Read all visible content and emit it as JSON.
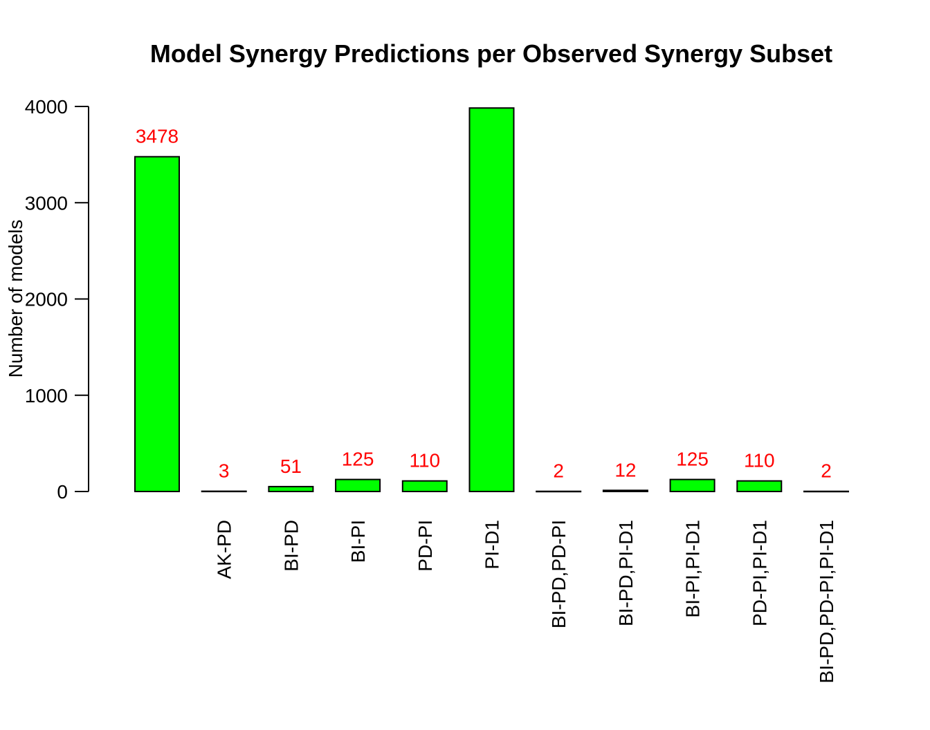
{
  "chart_data": {
    "type": "bar",
    "title": "Model Synergy Predictions per Observed Synergy Subset",
    "xlabel": "",
    "ylabel": "Number of models",
    "ylim": [
      0,
      4000
    ],
    "yticks": [
      "0",
      "1000",
      "2000",
      "3000",
      "4000"
    ],
    "categories": [
      "",
      "AK-PD",
      "BI-PD",
      "BI-PI",
      "PD-PI",
      "PI-D1",
      "BI-PD,PD-PI",
      "BI-PD,PI-D1",
      "BI-PI,PI-D1",
      "PD-PI,PI-D1",
      "BI-PD,PD-PI,PI-D1"
    ],
    "values": [
      3478,
      3,
      51,
      125,
      110,
      3984,
      2,
      12,
      125,
      110,
      2
    ],
    "data_labels": [
      "3478",
      "3",
      "51",
      "125",
      "110",
      "",
      "2",
      "12",
      "125",
      "110",
      "2"
    ],
    "bar_color": "#00ff00",
    "bar_border_color": "#000000",
    "label_color": "#ff0000",
    "grid": false,
    "legend": "none"
  }
}
